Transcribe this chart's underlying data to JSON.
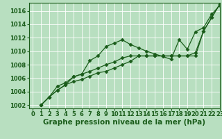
{
  "xlabel": "Graphe pression niveau de la mer (hPa)",
  "background_color": "#b8dfc0",
  "grid_color": "#ffffff",
  "line_color": "#1a5c1a",
  "xlim": [
    -0.5,
    23
  ],
  "ylim": [
    1001.5,
    1017.2
  ],
  "yticks": [
    1002,
    1004,
    1006,
    1008,
    1010,
    1012,
    1014,
    1016
  ],
  "xticks": [
    0,
    1,
    2,
    3,
    4,
    5,
    6,
    7,
    8,
    9,
    10,
    11,
    12,
    13,
    14,
    15,
    16,
    17,
    18,
    19,
    20,
    21,
    22,
    23
  ],
  "series": [
    [
      1002.0,
      1003.2,
      1004.2,
      1005.0,
      1006.2,
      1006.6,
      1008.6,
      1009.3,
      1010.7,
      1011.2,
      1011.7,
      1011.0,
      1010.5,
      1010.0,
      1009.6,
      1009.2,
      1008.8,
      1011.7,
      1010.3,
      1012.9,
      1013.5,
      1015.5,
      1016.8
    ],
    [
      1002.0,
      1003.2,
      1004.2,
      1005.0,
      1005.5,
      1005.8,
      1006.3,
      1006.8,
      1007.0,
      1007.5,
      1008.0,
      1008.5,
      1009.3,
      1009.3,
      1009.3,
      1009.3,
      1009.3,
      1009.3,
      1009.3,
      1009.3,
      1013.0,
      1015.0,
      1017.0
    ],
    [
      1002.0,
      1003.2,
      1004.8,
      1005.3,
      1006.2,
      1006.6,
      1007.0,
      1007.5,
      1008.0,
      1008.4,
      1009.0,
      1009.3,
      1009.3,
      1009.3,
      1009.3,
      1009.3,
      1009.3,
      1009.3,
      1009.3,
      1009.8,
      1013.0,
      1015.0,
      1017.0
    ]
  ],
  "xlabel_fontsize": 7.5,
  "tick_fontsize": 6,
  "markersize": 2.5,
  "linewidth": 0.9
}
